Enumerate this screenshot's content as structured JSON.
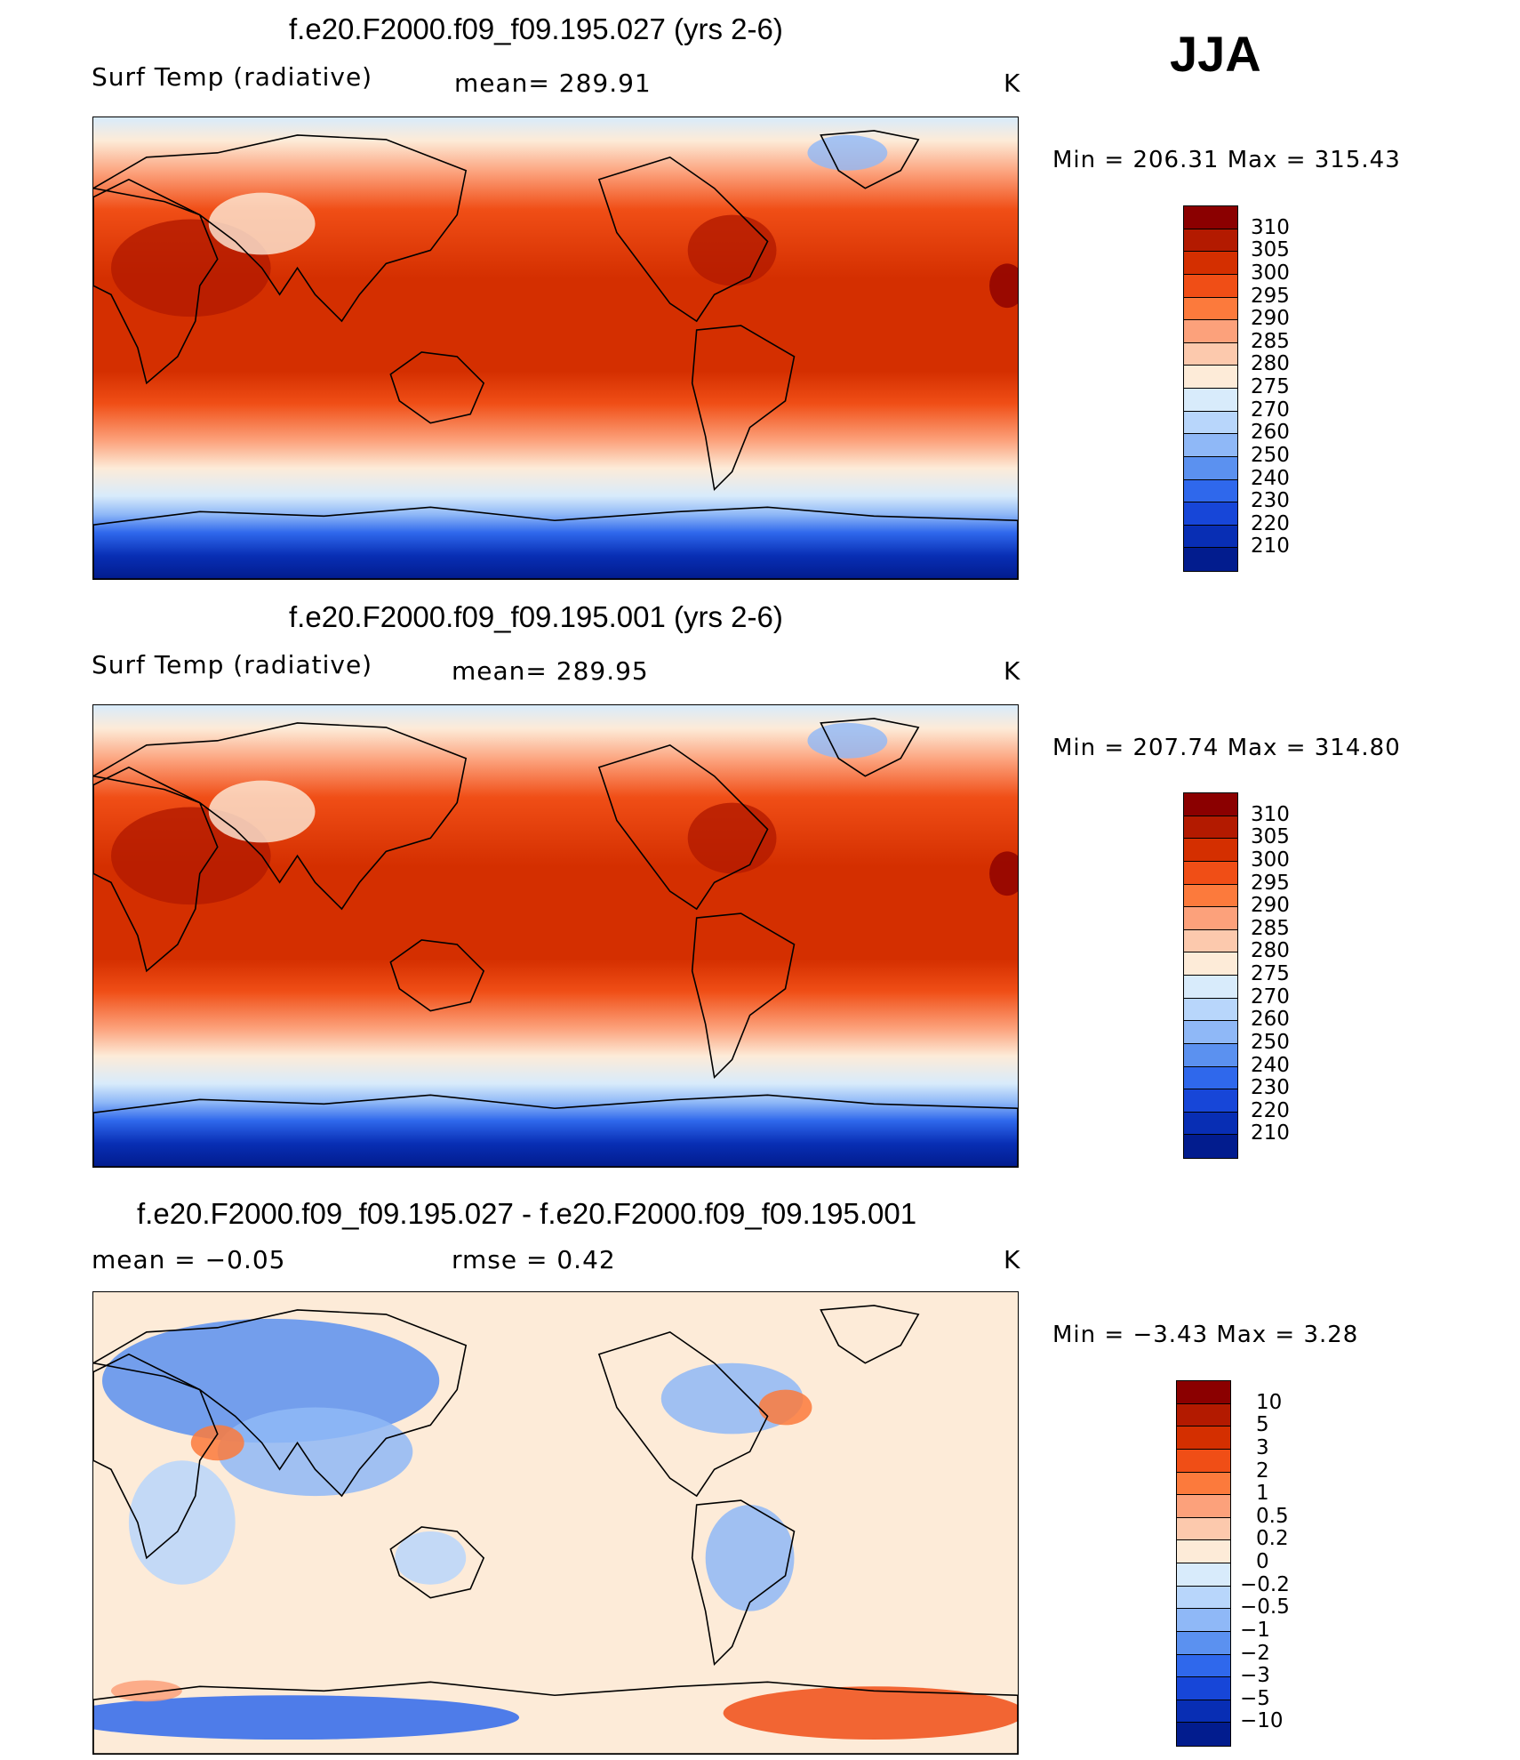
{
  "season": "JJA",
  "units": "K",
  "panels": [
    {
      "title": "f.e20.F2000.f09_f09.195.027 (yrs 2-6)",
      "variable": "Surf Temp (radiative)",
      "mean_label": "mean= 289.91",
      "stats": "Min  =  206.31  Max  =  315.43",
      "palette": "abs"
    },
    {
      "title": "f.e20.F2000.f09_f09.195.001 (yrs 2-6)",
      "variable": "Surf Temp (radiative)",
      "mean_label": "mean= 289.95",
      "stats": "Min  =  207.74  Max  =  314.80",
      "palette": "abs"
    },
    {
      "title": "f.e20.F2000.f09_f09.195.027 - f.e20.F2000.f09_f09.195.001",
      "mean_label": "mean  =     −0.05",
      "rmse_label": "rmse  =     0.42",
      "stats": "Min  =     −3.43  Max  =      3.28",
      "palette": "diff"
    }
  ],
  "colorbars": {
    "abs": {
      "colors": [
        "#8b0000",
        "#b31a00",
        "#d42f00",
        "#f04e16",
        "#fc7a3c",
        "#fca17b",
        "#fcc9ad",
        "#fdebd8",
        "#d8ebfb",
        "#b8d6fb",
        "#8fb8f7",
        "#5b91f0",
        "#2f68ec",
        "#1746d8",
        "#082eb4",
        "#021c8e"
      ],
      "labels": [
        "310",
        "305",
        "300",
        "295",
        "290",
        "285",
        "280",
        "275",
        "270",
        "260",
        "250",
        "240",
        "230",
        "220",
        "210"
      ]
    },
    "diff": {
      "colors": [
        "#8b0000",
        "#b31a00",
        "#d42f00",
        "#f04e16",
        "#fc7a3c",
        "#fca17b",
        "#fcc9ad",
        "#fdebd8",
        "#d8ebfb",
        "#b8d6fb",
        "#8fb8f7",
        "#5b91f0",
        "#2f68ec",
        "#1746d8",
        "#082eb4",
        "#021c8e"
      ],
      "labels": [
        "10",
        "5",
        "3",
        "2",
        "1",
        "0.5",
        "0.2",
        "0",
        "−0.2",
        "−0.5",
        "−1",
        "−2",
        "−3",
        "−5",
        "−10"
      ]
    }
  }
}
